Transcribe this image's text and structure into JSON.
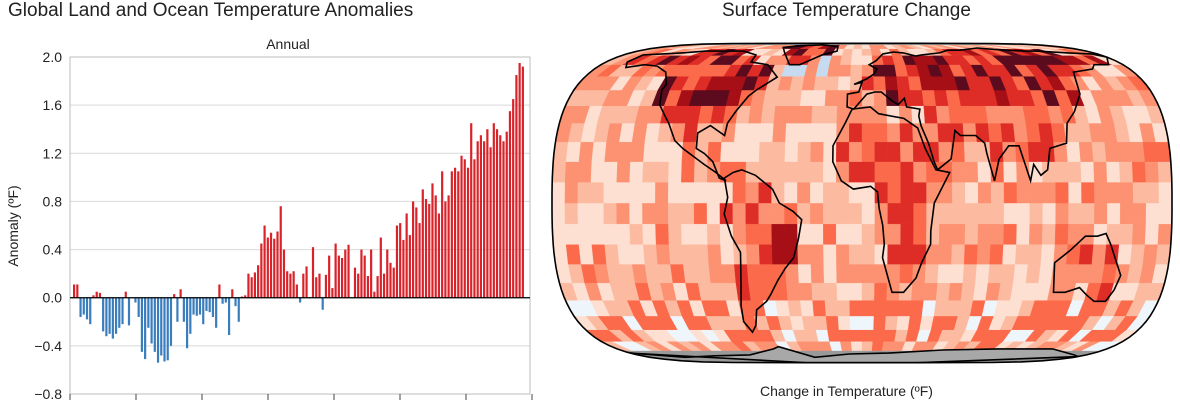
{
  "left_title": "Global Land and Ocean Temperature Anomalies",
  "right_title": "Surface Temperature Change",
  "map_caption": "Change in Temperature (ºF)",
  "colors": {
    "positive": "#d9232a",
    "negative": "#3a7dbd",
    "zero_line": "#000000",
    "grid": "#d9d9d9"
  },
  "chart_data": {
    "type": "bar",
    "title": "Annual",
    "ylabel": "Anomaly (ºF)",
    "xlabel": "",
    "ylim": [
      -0.8,
      2.0
    ],
    "yticks": [
      "−0.8",
      "−0.4",
      "0.0",
      "0.4",
      "0.8",
      "1.2",
      "1.6",
      "2.0"
    ],
    "ytick_values": [
      -0.8,
      -0.4,
      0.0,
      0.4,
      0.8,
      1.2,
      1.6,
      2.0
    ],
    "grid": true,
    "values": [
      0.11,
      0.11,
      -0.16,
      -0.14,
      -0.18,
      -0.22,
      0.02,
      0.05,
      0.04,
      -0.28,
      -0.32,
      -0.3,
      -0.34,
      -0.3,
      -0.25,
      -0.22,
      0.05,
      -0.23,
      0.0,
      -0.04,
      -0.16,
      -0.45,
      -0.51,
      -0.25,
      -0.38,
      -0.45,
      -0.54,
      -0.48,
      -0.53,
      -0.52,
      -0.4,
      0.03,
      -0.2,
      0.07,
      -0.2,
      -0.42,
      -0.3,
      -0.14,
      -0.15,
      -0.14,
      -0.22,
      -0.11,
      -0.12,
      -0.16,
      -0.25,
      0.11,
      -0.05,
      -0.04,
      -0.31,
      0.07,
      -0.07,
      -0.2,
      0.01,
      0.02,
      0.2,
      0.17,
      0.21,
      0.27,
      0.45,
      0.6,
      0.5,
      0.54,
      0.49,
      0.55,
      0.76,
      0.4,
      0.22,
      0.2,
      0.22,
      0.11,
      -0.04,
      0.2,
      0.26,
      0.0,
      0.42,
      0.17,
      0.2,
      -0.1,
      0.19,
      0.35,
      0.08,
      0.45,
      0.35,
      0.33,
      0.4,
      0.44,
      0.0,
      0.25,
      0.2,
      0.4,
      0.35,
      0.18,
      0.4,
      0.05,
      0.18,
      0.5,
      0.2,
      0.4,
      0.29,
      0.25,
      0.6,
      0.62,
      0.48,
      0.7,
      0.52,
      0.8,
      0.75,
      0.62,
      0.9,
      0.82,
      0.78,
      0.95,
      0.85,
      0.7,
      1.05,
      0.8,
      0.85,
      1.05,
      1.08,
      1.05,
      1.18,
      1.15,
      1.08,
      1.45,
      1.15,
      1.3,
      1.35,
      1.3,
      1.4,
      1.25,
      1.45,
      1.4,
      1.35,
      1.3,
      1.38,
      1.55,
      1.65,
      1.85,
      1.95,
      1.92
    ]
  },
  "map_legend": {
    "bins": [
      "#08306b",
      "#2171b5",
      "#6baed6",
      "#c6dbef",
      "#eef6fc",
      "#fde0d2",
      "#fcbba1",
      "#fc9272",
      "#fb6a4a",
      "#de2d26",
      "#a50f15",
      "#5c0a1e"
    ],
    "no_data": "#999999",
    "ocean_base": "#fde4da"
  }
}
